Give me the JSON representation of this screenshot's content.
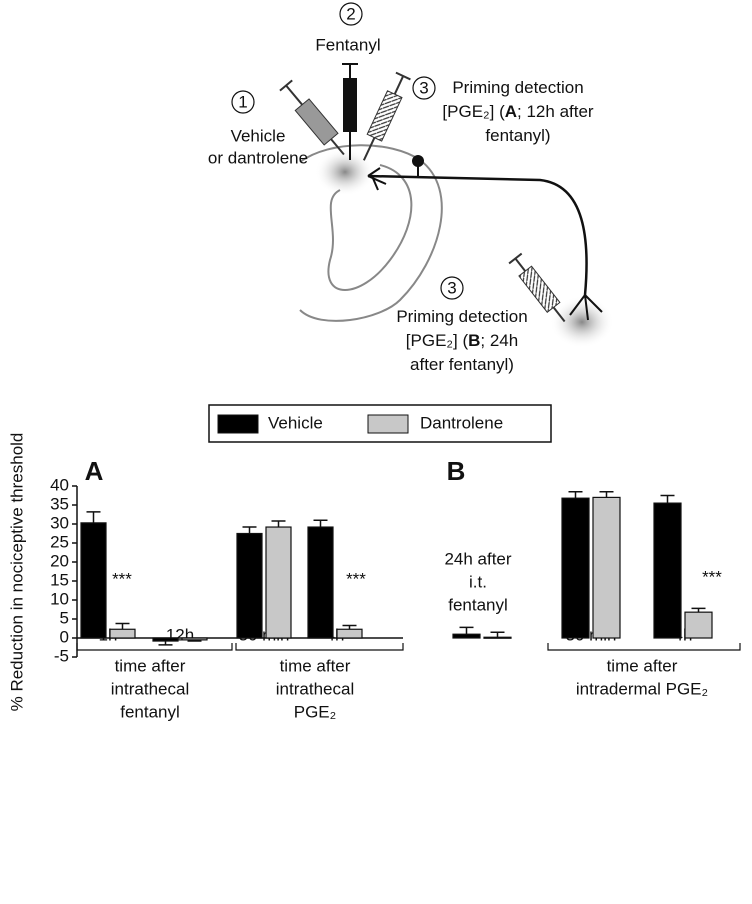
{
  "diagram": {
    "step1": {
      "number": "1",
      "lines": [
        "Vehicle",
        "or dantrolene"
      ]
    },
    "step2": {
      "number": "2",
      "lines": [
        "Fentanyl"
      ]
    },
    "step3a": {
      "number": "3",
      "lines": [
        [
          "Priming detection"
        ],
        [
          "[PGE₂] (",
          "A",
          "; 12h after"
        ],
        [
          "fentanyl)"
        ]
      ]
    },
    "step3b": {
      "number": "3",
      "lines": [
        [
          "Priming detection"
        ],
        [
          "[PGE₂] (",
          "B",
          "; 24h"
        ],
        [
          "after fentanyl)"
        ]
      ]
    }
  },
  "chart_data": [
    {
      "type": "bar",
      "panel": "A",
      "ylabel": "% Reduction in nociceptive threshold",
      "categories": [
        "1h",
        "12h",
        "30 min",
        "4h"
      ],
      "series": [
        {
          "name": "Vehicle",
          "color": "#000000",
          "values": [
            30.3,
            -0.8,
            27.5,
            29.2
          ],
          "errors": [
            2.9,
            1.0,
            1.7,
            1.8
          ]
        },
        {
          "name": "Dantrolene",
          "color": "#c8c8c8",
          "values": [
            2.3,
            -0.5,
            29.2,
            2.3
          ],
          "errors": [
            1.5,
            0.3,
            1.6,
            1.0
          ]
        }
      ],
      "ylim": [
        -5,
        40
      ],
      "yticks": [
        -5,
        0,
        5,
        10,
        15,
        20,
        25,
        30,
        35,
        40
      ],
      "groups": [
        [
          "time after",
          "intrathecal",
          "fentanyl"
        ],
        [
          "time after",
          "intrathecal",
          "PGE₂"
        ]
      ],
      "annotations": [
        "***",
        "***"
      ]
    },
    {
      "type": "bar",
      "panel": "B",
      "categories": [
        null,
        "30 min",
        "4h"
      ],
      "series": [
        {
          "name": "Vehicle",
          "color": "#000000",
          "values": [
            1.0,
            36.8,
            35.5
          ],
          "errors": [
            1.8,
            1.7,
            2.0
          ]
        },
        {
          "name": "Dantrolene",
          "color": "#c8c8c8",
          "values": [
            0.2,
            37.0,
            6.8
          ],
          "errors": [
            1.3,
            1.5,
            1.0
          ]
        }
      ],
      "groups": [
        [
          "time after",
          "intradermal PGE₂"
        ]
      ],
      "annotations": [
        "***",
        [
          "24h after",
          "i.t.",
          "fentanyl"
        ]
      ]
    }
  ]
}
